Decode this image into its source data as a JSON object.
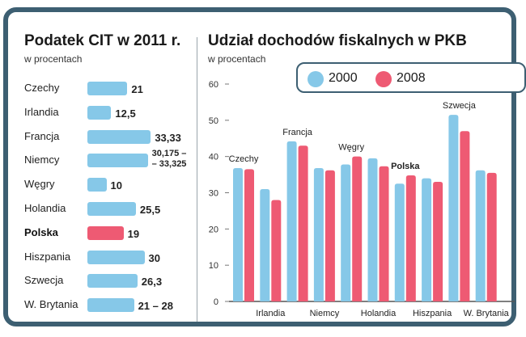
{
  "left_panel": {
    "title": "Podatek CIT w 2011 r.",
    "subtitle": "w procentach"
  },
  "right_panel": {
    "title": "Udział dochodów fiskalnych w PKB",
    "subtitle": "w procentach"
  },
  "colors": {
    "blue": "#86c8e8",
    "red": "#ee5a73",
    "frame": "#3d5f72"
  },
  "chart_data": [
    {
      "type": "bar",
      "orientation": "horizontal",
      "title": "Podatek CIT w 2011 r.",
      "subtitle": "w procentach",
      "categories": [
        "Czechy",
        "Irlandia",
        "Francja",
        "Niemcy",
        "Węgry",
        "Holandia",
        "Polska",
        "Hiszpania",
        "Szwecja",
        "W. Brytania"
      ],
      "values": [
        21,
        12.5,
        33.33,
        31.75,
        10,
        25.5,
        19,
        30,
        26.3,
        24.5
      ],
      "value_labels": [
        "21",
        "12,5",
        "33,33",
        "30,175 –\n– 33,325",
        "10",
        "25,5",
        "19",
        "30",
        "26,3",
        "21 – 28"
      ],
      "highlight": "Polska"
    },
    {
      "type": "bar",
      "title": "Udział dochodów fiskalnych w PKB",
      "subtitle": "w procentach",
      "categories": [
        "Czechy",
        "Irlandia",
        "Francja",
        "Niemcy",
        "Węgry",
        "Holandia",
        "Polska",
        "Hiszpania",
        "Szwecja",
        "W. Brytania"
      ],
      "axis_labels_bottom": [
        "Irlandia",
        "Niemcy",
        "Holandia",
        "Hiszpania",
        "W. Brytania"
      ],
      "axis_labels_top": [
        "Czechy",
        "Francja",
        "Węgry",
        "Polska",
        "Szwecja"
      ],
      "series": [
        {
          "name": "2000",
          "values": [
            36.8,
            31,
            44.2,
            36.8,
            37.8,
            39.5,
            32.5,
            34,
            51.5,
            36.2
          ]
        },
        {
          "name": "2008",
          "values": [
            36.5,
            28,
            43,
            36.2,
            40,
            37.3,
            34.8,
            33,
            47,
            35.5
          ]
        }
      ],
      "yticks": [
        0,
        10,
        20,
        30,
        40,
        50,
        60
      ],
      "ylim": [
        0,
        60
      ],
      "legend": "top-right",
      "highlight": "Polska"
    }
  ]
}
